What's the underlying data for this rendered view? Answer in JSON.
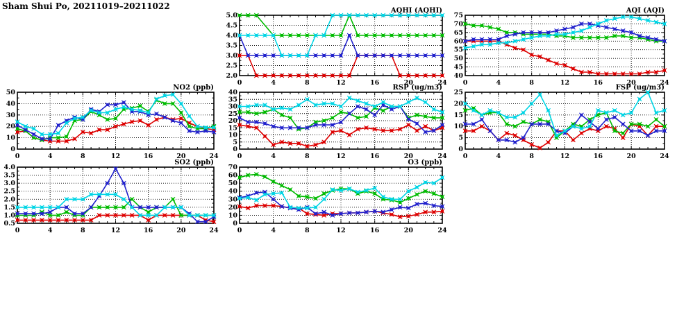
{
  "page": {
    "title": "Sham Shui Po, 20211019–20211022"
  },
  "colors": {
    "red": "#dd0000",
    "green": "#00bb00",
    "blue": "#2222cc",
    "cyan": "#00d5e5"
  },
  "x_axis": {
    "min": 0,
    "max": 24,
    "tick_labels": [
      "0",
      "4",
      "8",
      "12",
      "16",
      "20",
      "24"
    ],
    "grid_at": [
      4,
      8,
      12,
      16,
      20
    ],
    "minor_step": 1
  },
  "chart_data": [
    {
      "id": "aqhi",
      "type": "line",
      "title": "AQHI (AQHI)",
      "ylim": [
        2.0,
        5.0
      ],
      "ytick_labels": [
        "2.0",
        "2.5",
        "3.0",
        "3.5",
        "4.0",
        "4.5",
        "5.0"
      ],
      "series": [
        {
          "name": "series-red",
          "color": "red",
          "values": [
            3,
            3,
            2,
            2,
            2,
            2,
            2,
            2,
            2,
            2,
            2,
            2,
            2,
            2,
            3,
            3,
            3,
            3,
            3,
            2,
            2,
            2,
            2,
            2,
            2
          ]
        },
        {
          "name": "series-green",
          "color": "green",
          "values": [
            5,
            5,
            5,
            null,
            4,
            4,
            4,
            4,
            4,
            4,
            4,
            4,
            4,
            5,
            4,
            4,
            4,
            4,
            4,
            4,
            4,
            4,
            4,
            4,
            4
          ]
        },
        {
          "name": "series-blue",
          "color": "blue",
          "values": [
            4,
            3,
            3,
            3,
            3,
            3,
            3,
            3,
            3,
            3,
            3,
            3,
            3,
            4,
            3,
            3,
            3,
            3,
            3,
            3,
            3,
            3,
            3,
            3,
            3
          ]
        },
        {
          "name": "series-cyan",
          "color": "cyan",
          "values": [
            4,
            4,
            4,
            4,
            4,
            3,
            3,
            3,
            3,
            4,
            4,
            5,
            5,
            5,
            5,
            5,
            5,
            5,
            5,
            5,
            5,
            5,
            5,
            5,
            5
          ]
        }
      ]
    },
    {
      "id": "aqi",
      "type": "line",
      "title": "AQI (AQI)",
      "ylim": [
        40,
        75
      ],
      "ytick_labels": [
        "40",
        "45",
        "50",
        "55",
        "60",
        "65",
        "70",
        "75"
      ],
      "series": [
        {
          "name": "series-red",
          "color": "red",
          "values": [
            60,
            60,
            60,
            60,
            60,
            58,
            56,
            55,
            52,
            51,
            49,
            47,
            46,
            44,
            42,
            42,
            41,
            41,
            41,
            41,
            41,
            41,
            42,
            42,
            43
          ]
        },
        {
          "name": "series-green",
          "color": "green",
          "values": [
            70,
            69,
            69,
            68,
            67,
            65,
            65,
            64,
            64,
            64,
            64,
            63,
            63,
            62,
            62,
            62,
            62,
            62,
            63,
            63,
            62,
            62,
            61,
            60,
            60
          ]
        },
        {
          "name": "series-blue",
          "color": "blue",
          "values": [
            60,
            61,
            61,
            61,
            61,
            63,
            64,
            65,
            65,
            65,
            65,
            66,
            67,
            68,
            70,
            70,
            69,
            68,
            67,
            66,
            65,
            63,
            62,
            61,
            60
          ]
        },
        {
          "name": "series-cyan",
          "color": "cyan",
          "values": [
            56,
            57,
            58,
            58,
            59,
            59,
            60,
            61,
            62,
            63,
            63,
            64,
            64,
            65,
            66,
            68,
            70,
            72,
            73,
            74,
            74,
            73,
            72,
            71,
            70
          ]
        }
      ]
    },
    {
      "id": "no2",
      "type": "line",
      "title": "NO2 (ppb)",
      "ylim": [
        0,
        50
      ],
      "ytick_labels": [
        "0",
        "10",
        "20",
        "30",
        "40",
        "50"
      ],
      "series": [
        {
          "name": "series-red",
          "color": "red",
          "values": [
            15,
            16,
            10,
            8,
            7,
            7,
            7,
            9,
            15,
            14,
            17,
            17,
            20,
            22,
            24,
            25,
            21,
            26,
            28,
            26,
            27,
            23,
            20,
            18,
            17
          ]
        },
        {
          "name": "series-green",
          "color": "green",
          "values": [
            18,
            16,
            10,
            8,
            10,
            10,
            11,
            25,
            26,
            33,
            30,
            26,
            27,
            35,
            36,
            38,
            33,
            43,
            40,
            40,
            32,
            20,
            18,
            18,
            20
          ]
        },
        {
          "name": "series-blue",
          "color": "blue",
          "values": [
            21,
            17,
            13,
            9,
            9,
            21,
            25,
            28,
            26,
            35,
            33,
            39,
            39,
            41,
            33,
            33,
            30,
            31,
            28,
            25,
            23,
            16,
            15,
            16,
            15
          ]
        },
        {
          "name": "series-cyan",
          "color": "cyan",
          "values": [
            24,
            20,
            18,
            13,
            13,
            14,
            23,
            27,
            28,
            34,
            32,
            32,
            35,
            37,
            35,
            34,
            32,
            44,
            47,
            48,
            40,
            29,
            20,
            19,
            19
          ]
        }
      ]
    },
    {
      "id": "rsp",
      "type": "line",
      "title": "RSP (ug/m3)",
      "ylim": [
        0,
        40
      ],
      "ytick_labels": [
        "0",
        "5",
        "10",
        "15",
        "20",
        "25",
        "30",
        "35",
        "40"
      ],
      "series": [
        {
          "name": "series-red",
          "color": "red",
          "values": [
            17,
            16,
            15,
            9,
            3,
            5,
            4,
            4,
            2,
            3,
            5,
            12,
            13,
            10,
            14,
            15,
            14,
            13,
            13,
            14,
            17,
            13,
            16,
            13,
            15
          ]
        },
        {
          "name": "series-green",
          "color": "green",
          "values": [
            26,
            26,
            25,
            26,
            28,
            24,
            22,
            14,
            15,
            19,
            20,
            22,
            26,
            25,
            22,
            23,
            29,
            27,
            30,
            30,
            22,
            24,
            23,
            22,
            22
          ]
        },
        {
          "name": "series-blue",
          "color": "blue",
          "values": [
            22,
            19,
            19,
            18,
            16,
            15,
            15,
            15,
            15,
            17,
            17,
            17,
            19,
            25,
            30,
            28,
            24,
            31,
            28,
            30,
            21,
            18,
            12,
            13,
            17
          ]
        },
        {
          "name": "series-cyan",
          "color": "cyan",
          "values": [
            30,
            30,
            31,
            31,
            28,
            29,
            28,
            31,
            35,
            31,
            32,
            32,
            30,
            36,
            34,
            32,
            30,
            33,
            30,
            30,
            33,
            36,
            33,
            28,
            26
          ]
        }
      ]
    },
    {
      "id": "fsp",
      "type": "line",
      "title": "FSP (ug/m3)",
      "ylim": [
        0,
        25
      ],
      "ytick_labels": [
        "0",
        "5",
        "10",
        "15",
        "20",
        "25"
      ],
      "series": [
        {
          "name": "series-red",
          "color": "red",
          "values": [
            8,
            8,
            10,
            8,
            4,
            7,
            6,
            4,
            2,
            0.5,
            3,
            8,
            8,
            4,
            7,
            9,
            8,
            10,
            9,
            5,
            11,
            10,
            6,
            10,
            10
          ]
        },
        {
          "name": "series-green",
          "color": "green",
          "values": [
            17,
            18,
            15,
            16,
            16,
            11,
            10,
            12,
            11,
            13,
            12,
            5,
            8,
            11,
            10,
            13,
            15,
            16,
            8,
            7,
            11,
            11,
            10,
            13,
            10
          ]
        },
        {
          "name": "series-blue",
          "color": "blue",
          "values": [
            11,
            11,
            13,
            8,
            4,
            4,
            3,
            5,
            11,
            11,
            11,
            8,
            7,
            10,
            15,
            12,
            9,
            13,
            14,
            11,
            8,
            8,
            6,
            8,
            8
          ]
        },
        {
          "name": "series-cyan",
          "color": "cyan",
          "values": [
            20,
            17,
            15,
            17,
            16,
            14,
            14,
            16,
            20,
            24,
            17,
            6,
            8,
            10,
            9,
            10,
            17,
            16,
            17,
            15,
            16,
            22,
            25,
            16,
            17
          ]
        }
      ]
    },
    {
      "id": "so2",
      "type": "line",
      "title": "SO2 (ppb)",
      "ylim": [
        0.5,
        4.0
      ],
      "ytick_labels": [
        "0.5",
        "1.0",
        "1.5",
        "2.0",
        "2.5",
        "3.0",
        "3.5",
        "4.0"
      ],
      "series": [
        {
          "name": "series-red",
          "color": "red",
          "values": [
            0.7,
            0.7,
            0.7,
            0.7,
            0.7,
            0.7,
            0.7,
            0.7,
            0.7,
            0.7,
            1.0,
            1.0,
            1.0,
            1.0,
            1.0,
            1.0,
            0.7,
            1.0,
            1.0,
            1.0,
            1.0,
            1.0,
            1.0,
            0.7,
            0.6
          ]
        },
        {
          "name": "series-green",
          "color": "green",
          "values": [
            1.0,
            1.0,
            1.0,
            1.2,
            1.0,
            1.0,
            1.2,
            1.0,
            1.0,
            1.5,
            1.5,
            1.5,
            1.5,
            1.5,
            2.0,
            1.5,
            1.2,
            1.5,
            1.5,
            2.0,
            1.0,
            1.0,
            1.0,
            1.0,
            1.0
          ]
        },
        {
          "name": "series-blue",
          "color": "blue",
          "values": [
            1.1,
            1.1,
            1.1,
            1.1,
            1.2,
            1.5,
            1.5,
            1.1,
            1.1,
            1.5,
            2.2,
            3.0,
            3.9,
            3.0,
            1.5,
            1.5,
            1.5,
            1.5,
            1.5,
            1.5,
            1.5,
            1.1,
            0.6,
            0.6,
            0.9
          ]
        },
        {
          "name": "series-cyan",
          "color": "cyan",
          "values": [
            1.5,
            1.5,
            1.5,
            1.5,
            1.5,
            1.5,
            2.0,
            2.0,
            2.0,
            2.3,
            2.3,
            2.3,
            2.3,
            2.0,
            1.5,
            1.0,
            1.0,
            1.0,
            1.5,
            1.5,
            1.5,
            1.0,
            1.0,
            1.0,
            1.0
          ]
        }
      ]
    },
    {
      "id": "o3",
      "type": "line",
      "title": "O3 (ppb)",
      "ylim": [
        0,
        70
      ],
      "ytick_labels": [
        "0",
        "10",
        "20",
        "30",
        "40",
        "50",
        "60",
        "70"
      ],
      "series": [
        {
          "name": "series-red",
          "color": "red",
          "values": [
            21,
            19,
            22,
            22,
            22,
            21,
            19,
            19,
            12,
            11,
            10,
            12,
            12,
            13,
            13,
            14,
            15,
            13,
            11,
            8,
            9,
            11,
            14,
            14,
            15
          ]
        },
        {
          "name": "series-green",
          "color": "green",
          "values": [
            57,
            60,
            61,
            58,
            52,
            47,
            42,
            34,
            33,
            31,
            37,
            41,
            43,
            43,
            37,
            40,
            37,
            30,
            29,
            26,
            31,
            36,
            40,
            37,
            33
          ]
        },
        {
          "name": "series-blue",
          "color": "blue",
          "values": [
            32,
            34,
            38,
            39,
            30,
            21,
            19,
            17,
            20,
            12,
            14,
            10,
            12,
            13,
            13,
            14,
            15,
            14,
            17,
            20,
            19,
            24,
            25,
            22,
            21
          ]
        },
        {
          "name": "series-cyan",
          "color": "cyan",
          "values": [
            31,
            32,
            29,
            36,
            37,
            38,
            20,
            19,
            19,
            20,
            30,
            42,
            41,
            43,
            39,
            41,
            44,
            33,
            30,
            30,
            40,
            45,
            51,
            50,
            57
          ]
        }
      ]
    }
  ]
}
